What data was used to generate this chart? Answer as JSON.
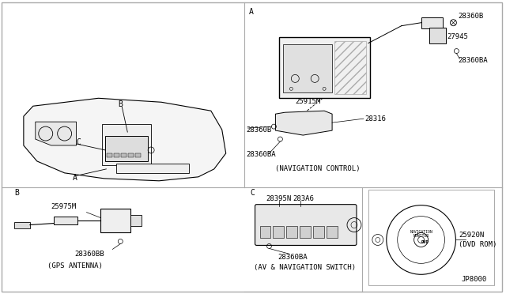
{
  "bg_color": "#ffffff",
  "line_color": "#000000",
  "border_color": "#aaaaaa",
  "font_size": 6.5,
  "part_numbers": {
    "nav_control_box": "25915M",
    "bracket_connector": "28316",
    "bolt_top": "28360B",
    "bolt_mid": "28360B",
    "bolt_ba_top": "28360BA",
    "bolt_ba_mid": "28360BA",
    "sensor_27945": "27945",
    "gps_antenna_unit": "25975M",
    "gps_bolt_bb": "28360BB",
    "nav_switch_unit": "28395N",
    "nav_switch_sub": "283A6",
    "nav_switch_bolt": "28360BA",
    "dvd_rom": "25920N",
    "dvd_label": "(DVD ROM)",
    "jp8000": "JP8000"
  },
  "section_labels": {
    "nav_control": "(NAVIGATION CONTROL)",
    "gps_antenna": "(GPS ANTENNA)",
    "av_nav_switch": "(AV & NAVIGATION SWITCH)"
  }
}
